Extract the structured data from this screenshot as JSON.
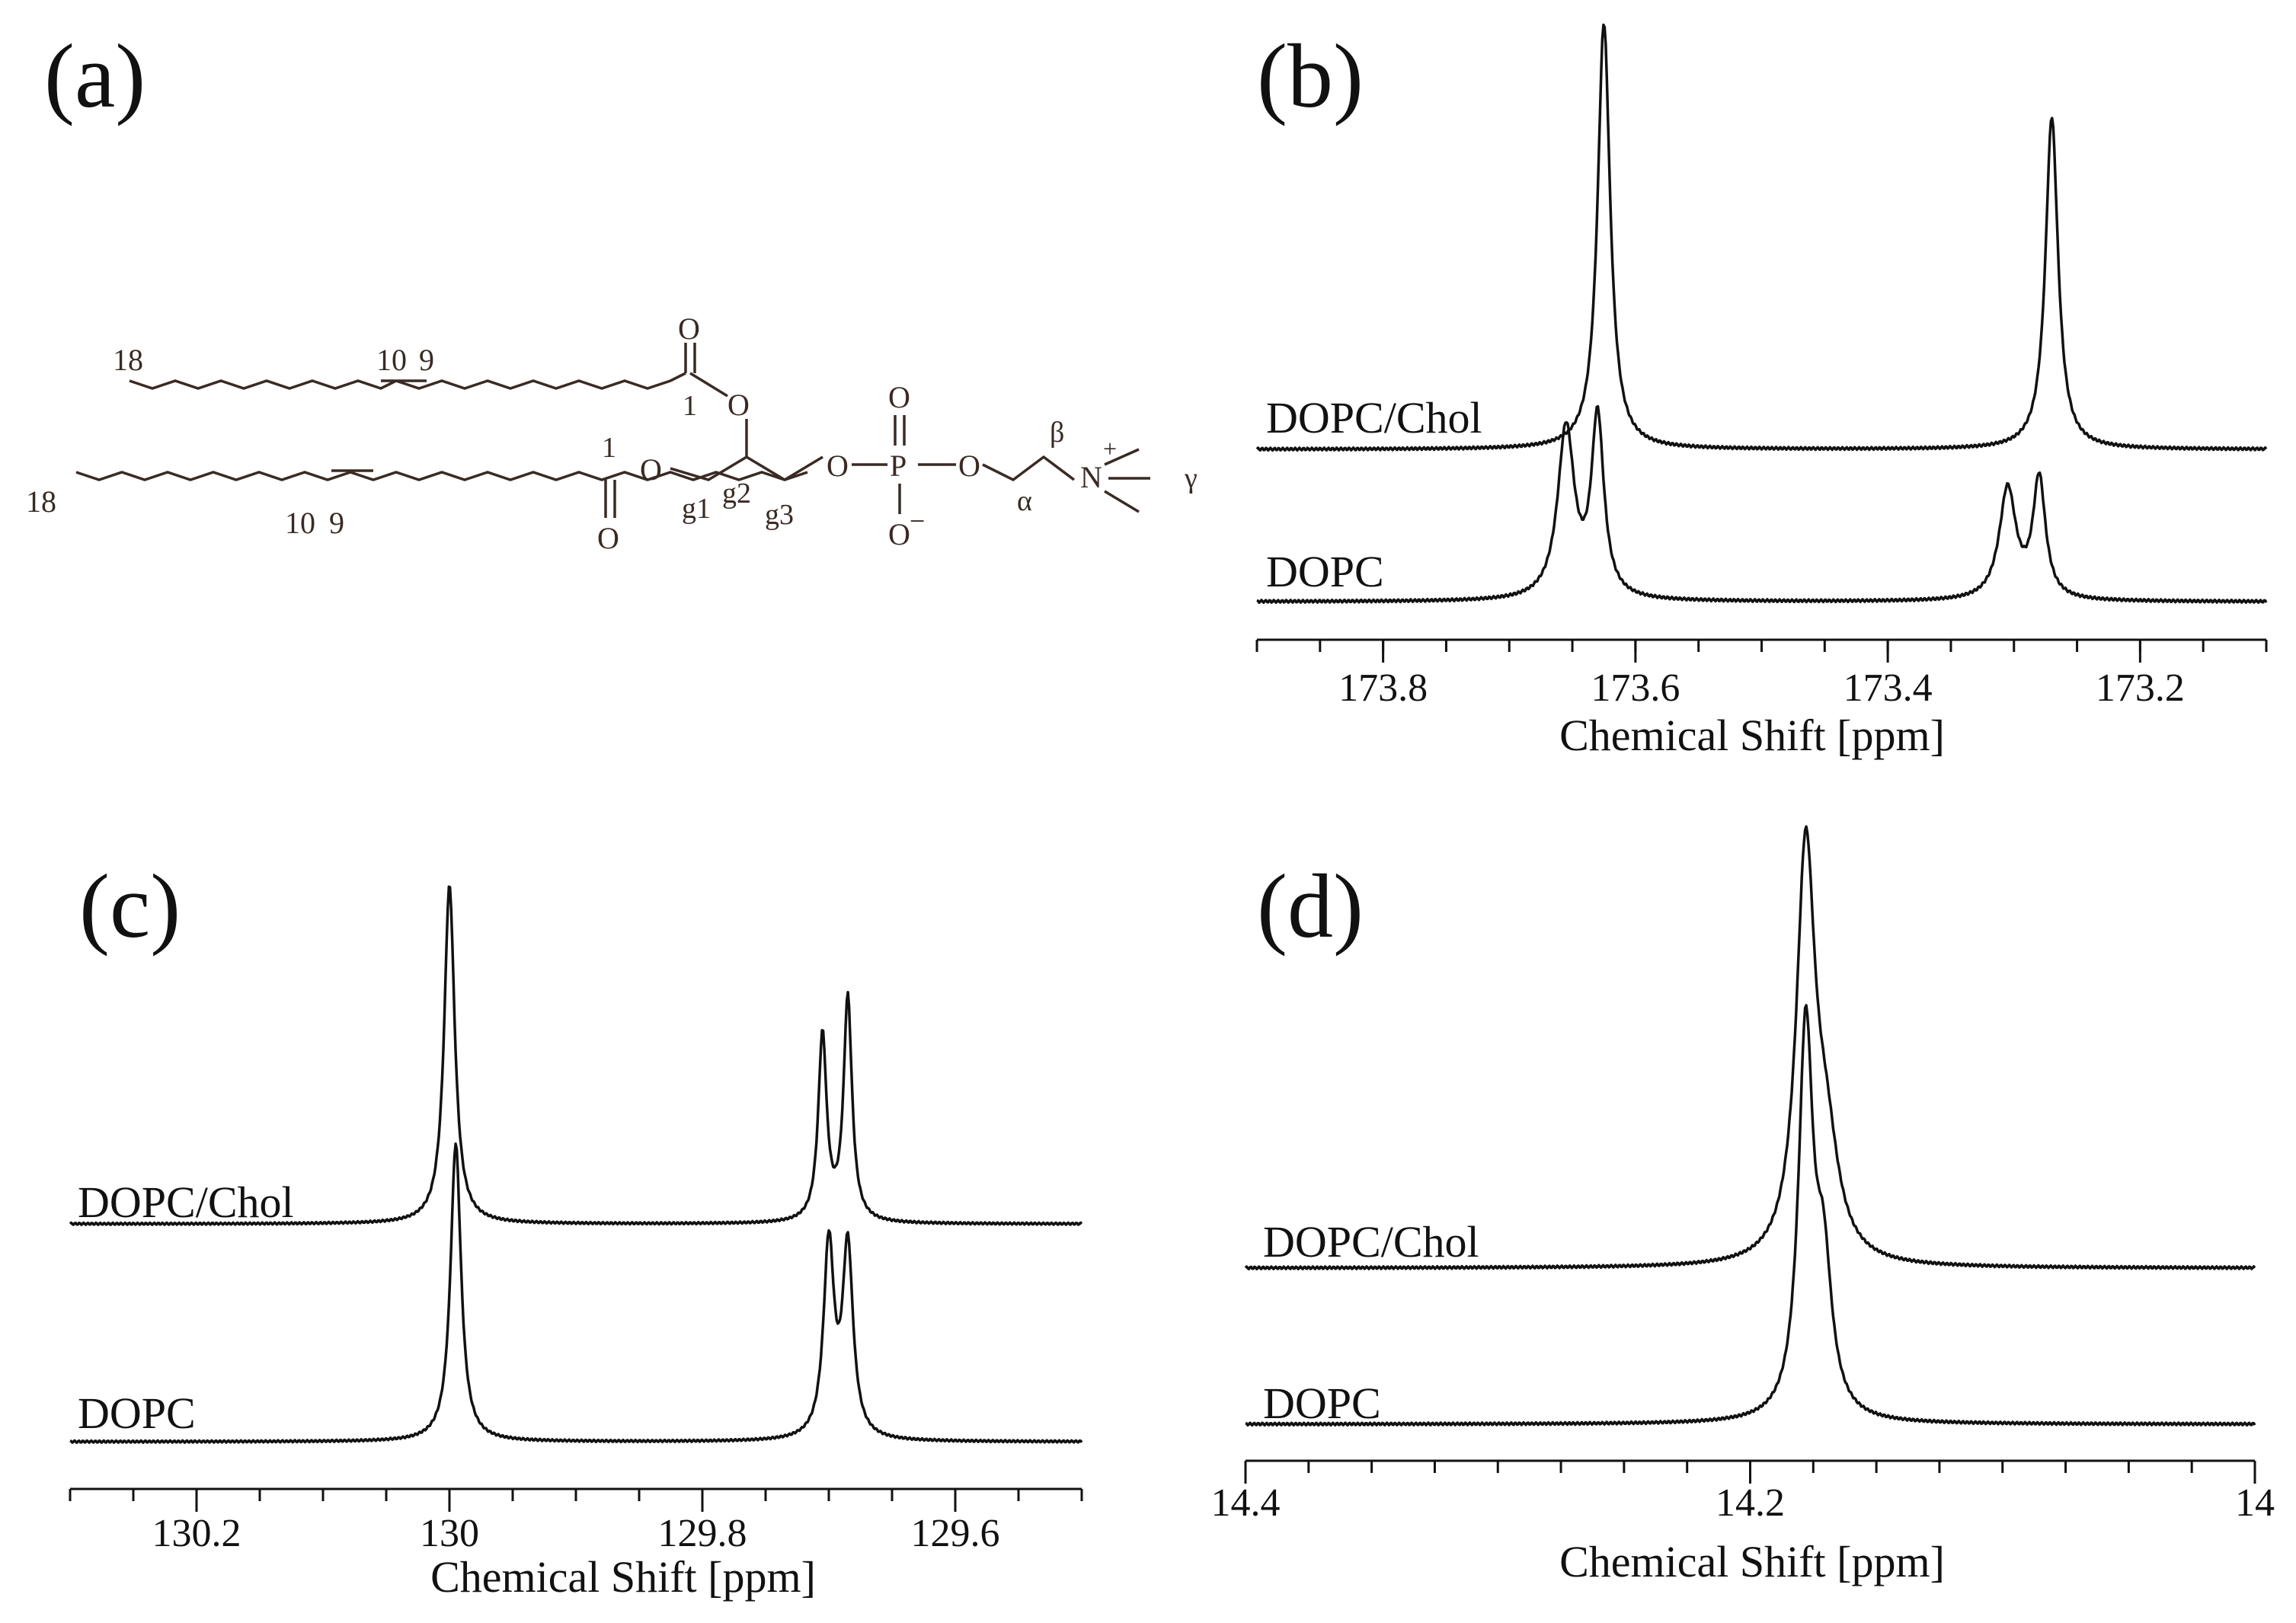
{
  "panels": {
    "a": {
      "label": "(a)"
    },
    "b": {
      "label": "(b)"
    },
    "c": {
      "label": "(c)"
    },
    "d": {
      "label": "(d)"
    }
  },
  "structure": {
    "chain1_labels": {
      "c18": "18",
      "c10": "10",
      "c9": "9",
      "c1": "1"
    },
    "chain2_labels": {
      "c18": "18",
      "c10": "10",
      "c9": "9",
      "c1": "1"
    },
    "oxygen": "O",
    "phosphorus": "P",
    "nitrogen": "N",
    "charge_plus": "+",
    "charge_minus": "−",
    "glycerol": {
      "g1": "g1",
      "g2": "g2",
      "g3": "g3"
    },
    "alpha": "α",
    "beta": "β",
    "gamma": "γ"
  },
  "chart_data": [
    {
      "panel": "(b)",
      "type": "line",
      "xlabel": "Chemical Shift [ppm]",
      "xlim": [
        173.9,
        173.1
      ],
      "x_reversed": true,
      "ticks": [
        "173.8",
        "173.6",
        "173.4",
        "173.2"
      ],
      "tick_values": [
        173.8,
        173.6,
        173.4,
        173.2
      ],
      "series": [
        {
          "name": "DOPC/Chol",
          "peaks": [
            {
              "x": 173.625,
              "h": 1.0,
              "w": 0.006
            },
            {
              "x": 173.27,
              "h": 0.78,
              "w": 0.006
            }
          ]
        },
        {
          "name": "DOPC",
          "peaks": [
            {
              "x": 173.655,
              "h": 0.4,
              "w": 0.008
            },
            {
              "x": 173.63,
              "h": 0.42,
              "w": 0.006
            },
            {
              "x": 173.305,
              "h": 0.26,
              "w": 0.008
            },
            {
              "x": 173.28,
              "h": 0.28,
              "w": 0.006
            }
          ]
        }
      ]
    },
    {
      "panel": "(c)",
      "type": "line",
      "xlabel": "Chemical Shift [ppm]",
      "xlim": [
        130.3,
        129.5
      ],
      "x_reversed": true,
      "ticks": [
        "130.2",
        "130",
        "129.8",
        "129.6"
      ],
      "tick_values": [
        130.2,
        130.0,
        129.8,
        129.6
      ],
      "series": [
        {
          "name": "DOPC/Chol",
          "peaks": [
            {
              "x": 130.0,
              "h": 1.0,
              "w": 0.005
            },
            {
              "x": 129.705,
              "h": 0.55,
              "w": 0.004
            },
            {
              "x": 129.685,
              "h": 0.66,
              "w": 0.004
            }
          ]
        },
        {
          "name": "DOPC",
          "peaks": [
            {
              "x": 129.995,
              "h": 0.88,
              "w": 0.005
            },
            {
              "x": 129.7,
              "h": 0.57,
              "w": 0.005
            },
            {
              "x": 129.685,
              "h": 0.56,
              "w": 0.005
            }
          ]
        }
      ]
    },
    {
      "panel": "(d)",
      "type": "line",
      "xlabel": "Chemical Shift [ppm]",
      "xlim": [
        14.4,
        14.0
      ],
      "x_reversed": true,
      "ticks": [
        "14.4",
        "14.2",
        "14"
      ],
      "tick_values": [
        14.4,
        14.2,
        14.0
      ],
      "series": [
        {
          "name": "DOPC/Chol",
          "peaks": [
            {
              "x": 14.178,
              "h": 1.0,
              "w": 0.0045
            },
            {
              "x": 14.17,
              "h": 0.25,
              "w": 0.006
            }
          ]
        },
        {
          "name": "DOPC",
          "peaks": [
            {
              "x": 14.178,
              "h": 0.95,
              "w": 0.0035
            },
            {
              "x": 14.171,
              "h": 0.35,
              "w": 0.004
            }
          ]
        }
      ]
    }
  ]
}
